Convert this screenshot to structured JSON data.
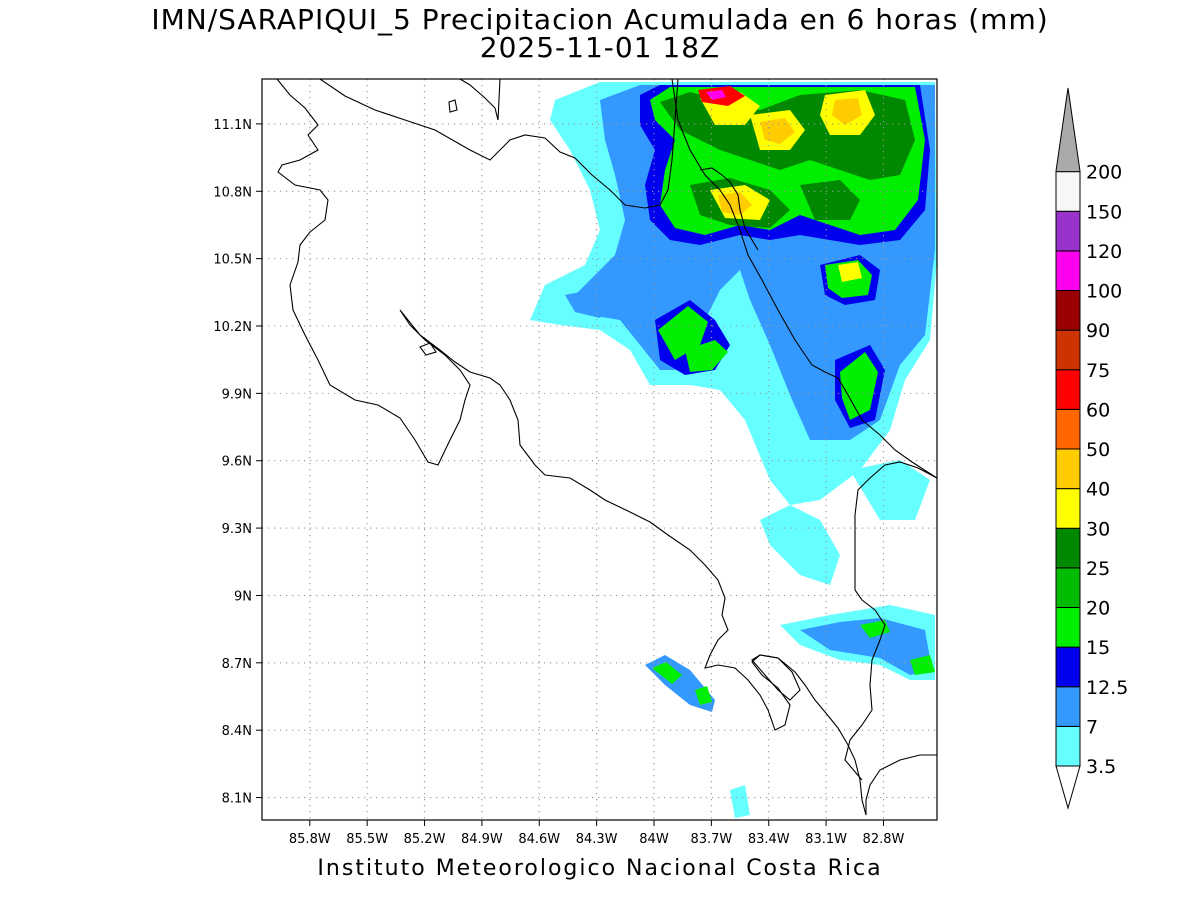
{
  "title": {
    "line1": "IMN/SARAPIQUI_5 Precipitacion Acumulada en 6 horas (mm)",
    "line2": "2025-11-01 18Z"
  },
  "footer": "Instituto Meteorologico Nacional Costa Rica",
  "map": {
    "lon_range": [
      -86.05,
      -82.52
    ],
    "lat_range": [
      8.0,
      11.3
    ],
    "lon_ticks": [
      {
        "value": -85.8,
        "label": "85.8W"
      },
      {
        "value": -85.5,
        "label": "85.5W"
      },
      {
        "value": -85.2,
        "label": "85.2W"
      },
      {
        "value": -84.9,
        "label": "84.9W"
      },
      {
        "value": -84.6,
        "label": "84.6W"
      },
      {
        "value": -84.3,
        "label": "84.3W"
      },
      {
        "value": -84.0,
        "label": "84W"
      },
      {
        "value": -83.7,
        "label": "83.7W"
      },
      {
        "value": -83.4,
        "label": "83.4W"
      },
      {
        "value": -83.1,
        "label": "83.1W"
      },
      {
        "value": -82.8,
        "label": "82.8W"
      }
    ],
    "lat_ticks": [
      {
        "value": 11.1,
        "label": "11.1N"
      },
      {
        "value": 10.8,
        "label": "10.8N"
      },
      {
        "value": 10.5,
        "label": "10.5N"
      },
      {
        "value": 10.2,
        "label": "10.2N"
      },
      {
        "value": 9.9,
        "label": "9.9N"
      },
      {
        "value": 9.6,
        "label": "9.6N"
      },
      {
        "value": 9.3,
        "label": "9.3N"
      },
      {
        "value": 9.0,
        "label": "9N"
      },
      {
        "value": 8.7,
        "label": "8.7N"
      },
      {
        "value": 8.4,
        "label": "8.4N"
      },
      {
        "value": 8.1,
        "label": "8.1N"
      }
    ],
    "grid": true
  },
  "legend": {
    "labels": [
      "3.5",
      "7",
      "12.5",
      "15",
      "20",
      "25",
      "30",
      "40",
      "50",
      "60",
      "75",
      "90",
      "100",
      "120",
      "150",
      "200"
    ],
    "colors": [
      "#66ffff",
      "#3399ff",
      "#0000ee",
      "#00ee00",
      "#00bb00",
      "#008800",
      "#ffff00",
      "#ffcc00",
      "#ff6600",
      "#ff0000",
      "#cc3300",
      "#990000",
      "#ff00ee",
      "#9933cc",
      "#f7f7f7",
      "#aaaaaa"
    ]
  }
}
